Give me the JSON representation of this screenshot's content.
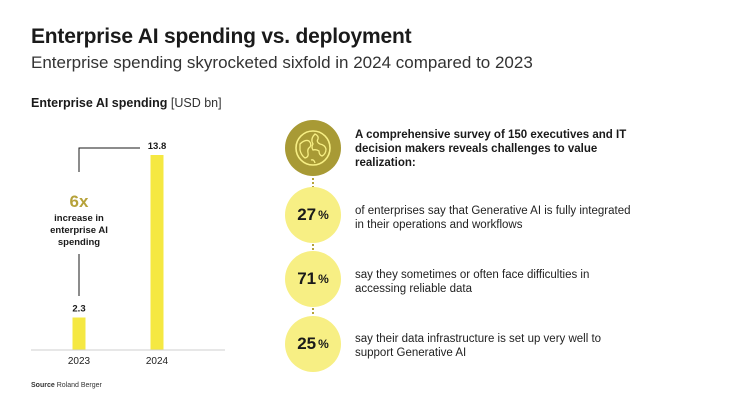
{
  "header": {
    "title": "Enterprise AI spending vs. deployment",
    "subtitle": "Enterprise spending skyrocketed sixfold in 2024 compared to 2023"
  },
  "chart_data": {
    "type": "bar",
    "title": "Enterprise AI spending",
    "unit": "[USD bn]",
    "categories": [
      "2023",
      "2024"
    ],
    "values": [
      2.3,
      13.8
    ],
    "value_labels": [
      "2.3",
      "13.8"
    ],
    "xlabel": "",
    "ylabel": "",
    "ylim": [
      0,
      13.8
    ],
    "annotation": {
      "big": "6x",
      "text": [
        "increase in",
        "enterprise AI",
        "spending"
      ]
    }
  },
  "survey": {
    "intro": "A comprehensive survey of 150 executives and IT decision makers reveals challenges to value realization:",
    "icon": "globe-icon",
    "stats": [
      {
        "value": "27",
        "unit": "%",
        "text": "of enterprises say that Generative AI is fully integrated in their operations and workflows"
      },
      {
        "value": "71",
        "unit": "%",
        "text": "say they sometimes or often face difficulties in accessing reliable data"
      },
      {
        "value": "25",
        "unit": "%",
        "text": "say their data infrastructure is set up very well to support Generative AI"
      }
    ]
  },
  "source": {
    "label": "Source",
    "name": "Roland Berger"
  },
  "colors": {
    "bar": "#f5e842",
    "circle": "#f7ef84",
    "accent": "#b6a23a",
    "globe_bg": "#a89a35"
  }
}
